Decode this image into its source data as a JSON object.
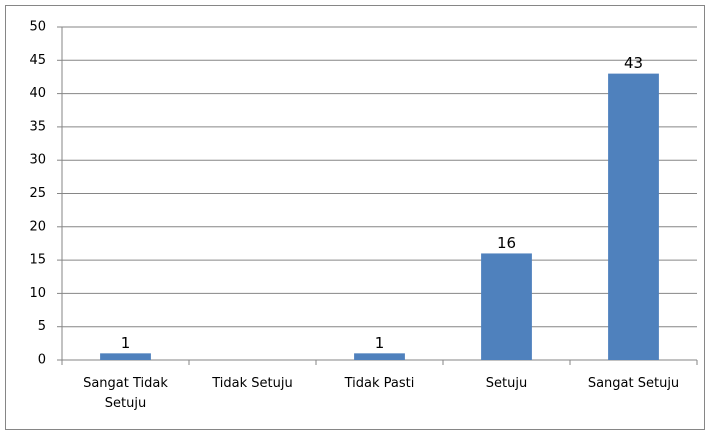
{
  "chart_data": {
    "type": "bar",
    "categories": [
      "Sangat Tidak Setuju",
      "Tidak Setuju",
      "Tidak Pasti",
      "Setuju",
      "Sangat Setuju"
    ],
    "values": [
      1,
      0,
      1,
      16,
      43
    ],
    "color": "#4f81bd",
    "ylim": [
      0,
      50
    ],
    "yticks": [
      0,
      5,
      10,
      15,
      20,
      25,
      30,
      35,
      40,
      45,
      50
    ],
    "grid": true
  }
}
